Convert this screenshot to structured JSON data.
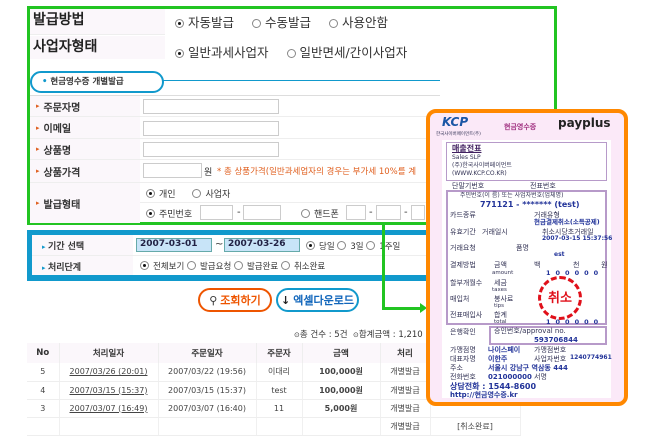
{
  "settings": {
    "issue_method": {
      "label": "발급방법",
      "options": [
        {
          "label": "자동발급",
          "checked": true
        },
        {
          "label": "수동발급",
          "checked": false
        },
        {
          "label": "사용안함",
          "checked": false
        }
      ]
    },
    "business_type": {
      "label": "사업자형태",
      "options": [
        {
          "label": "일반과세사업자",
          "checked": true
        },
        {
          "label": "일반면세/간이사업자",
          "checked": false
        }
      ]
    }
  },
  "tab": {
    "label": "현금영수증 개별발급"
  },
  "form": {
    "orderer": "주문자명",
    "email": "이메일",
    "product": "상품명",
    "price": "상품가격",
    "price_unit": "원",
    "price_note": "* 총 상품가격(일반과세업자의 경우는 부가세 10%를 계",
    "issue_type": "발급형태",
    "type_options": [
      {
        "label": "개인",
        "checked": true
      },
      {
        "label": "사업자",
        "checked": false
      }
    ],
    "id_options": [
      {
        "label": "주민번호",
        "checked": true
      },
      {
        "label": "핸드폰",
        "checked": false
      }
    ],
    "dash": "-"
  },
  "search": {
    "period_label": "기간 선택",
    "start": "2007-03-01",
    "tilde": "~",
    "end": "2007-03-26",
    "period_options": [
      {
        "label": "당일",
        "checked": true
      },
      {
        "label": "3일",
        "checked": false
      },
      {
        "label": "1주일",
        "checked": false
      }
    ],
    "stage_label": "처리단계",
    "stage_options": [
      {
        "label": "전체보기",
        "checked": true
      },
      {
        "label": "발급요청",
        "checked": false
      },
      {
        "label": "발급완료",
        "checked": false
      },
      {
        "label": "취소완료",
        "checked": false
      }
    ]
  },
  "buttons": {
    "search": "조회하기",
    "excel": "엑셀다운로드"
  },
  "summary": {
    "count": "총 건수 : 5건",
    "total": "합계금액 : 1,210"
  },
  "table": {
    "headers": [
      "No",
      "처리일자",
      "주문일자",
      "주문자",
      "금액",
      "처리",
      ""
    ],
    "rows": [
      [
        "5",
        "2007/03/26 (20:01)",
        "2007/03/22 (19:56)",
        "이대리",
        "100,000원",
        "개별발급",
        ""
      ],
      [
        "4",
        "2007/03/15 (15:37)",
        "2007/03/15 (15:37)",
        "test",
        "100,000원",
        "개별발급",
        ""
      ],
      [
        "3",
        "2007/03/07 (16:49)",
        "2007/03/07 (16:40)",
        "11",
        "5,000원",
        "개별발급",
        ""
      ],
      [
        "",
        "",
        "",
        "",
        "",
        "개별발급",
        "[취소완료]"
      ]
    ]
  },
  "receipt": {
    "kcp": "KCP",
    "kcp_sub": "한국사이버페이먼트(주)",
    "title": "현금영수증",
    "brand": "payplus",
    "seller_title": "매출전표",
    "seller_lines": [
      "Sales SLP",
      "(주)한국사이버페이먼트",
      "(WWW.KCP.CO.KR)"
    ],
    "terminal": "단말기번호",
    "slip": "전표번호",
    "id_label": "주민번호(이 름) 또는 사업자번호(업체명)",
    "id_value": "771121 - ******* (test)",
    "card_type": "카드종류",
    "deal_type": "거래유형",
    "deal_type_value": "현금결제취소(소득공제)",
    "valid": "유효기간",
    "deal_date": "거래일시",
    "cancel_date": "취소시당초거래일",
    "cancel_date_value": "2007-03-15 15:37:56",
    "request": "거래요청",
    "item": "품명",
    "item_value": "est",
    "pay_method": "결제방법",
    "amount": "금액",
    "amount_en": "amount",
    "install": "할부개월수",
    "tax": "세금",
    "tax_en": "taxes",
    "buyer": "매입처",
    "tip": "봉사료",
    "tip_en": "tips",
    "issuer": "전표매입사",
    "sum": "합계",
    "sum_en": "total",
    "units": [
      "백",
      "천",
      "원"
    ],
    "amount_digits": [
      "1",
      "0",
      "0",
      "0",
      "0",
      "0"
    ],
    "total_digits": [
      "1",
      "0",
      "0",
      "0",
      "0",
      "0"
    ],
    "bank": "은행확인",
    "approval": "승인번호/approval no.",
    "approval_value": "593706844",
    "store": "가맹점명",
    "store_value": "나이스페이",
    "store_no": "가맹점번호",
    "ceo": "대표자명",
    "ceo_value": "이한주",
    "biz_no": "사업자번호",
    "biz_no_value": "1240774961",
    "addr": "주소",
    "addr_value": "서울시 강남구 역삼동 444",
    "tel": "전화번호",
    "tel_value": "021000000",
    "sign": "서명",
    "cs": "상담전화 : 1544-8600",
    "url": "http://현금영수증.kr",
    "stamp": "취소"
  },
  "colors": {
    "green": "#22c422",
    "orange": "#ff8800",
    "blue": "#1199cc",
    "amount": "#ee5500"
  }
}
